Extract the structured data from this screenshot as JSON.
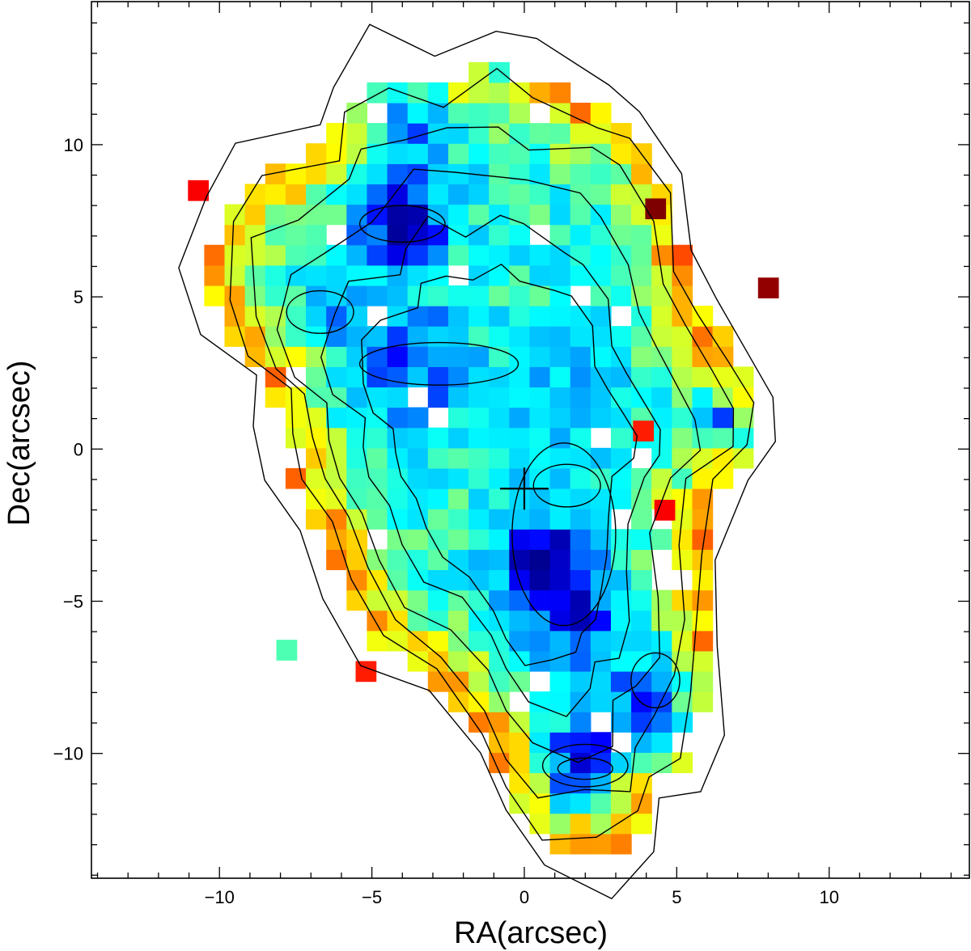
{
  "chart_data": {
    "type": "heatmap",
    "title": "",
    "xlabel": "RA(arcsec)",
    "ylabel": "Dec(arcsec)",
    "xlim": [
      -14.2,
      14.6
    ],
    "ylim": [
      -14.1,
      14.7
    ],
    "x_ticks": [
      -10,
      -5,
      0,
      5,
      10
    ],
    "y_ticks": [
      -10,
      -5,
      0,
      5,
      10
    ],
    "x_tick_labels": [
      "−10",
      "−5",
      "0",
      "5",
      "10"
    ],
    "y_tick_labels": [
      "−10",
      "−5",
      "0",
      "5",
      "10"
    ],
    "pixel_size_arcsec": 0.667,
    "colormap": "jet",
    "colormap_stops": [
      "#00008b",
      "#0000ff",
      "#00aaff",
      "#00ffff",
      "#80ff80",
      "#ffff00",
      "#ff8c00",
      "#ff0000",
      "#7f0000"
    ],
    "grid": false,
    "legend": "none",
    "contour_levels": 6,
    "center_marker": {
      "type": "cross",
      "x": 0,
      "y": -1.3,
      "color": "#000000"
    },
    "map_extent": {
      "ra": [
        -10.5,
        8.0
      ],
      "dec": [
        -13.3,
        12.7
      ]
    }
  }
}
